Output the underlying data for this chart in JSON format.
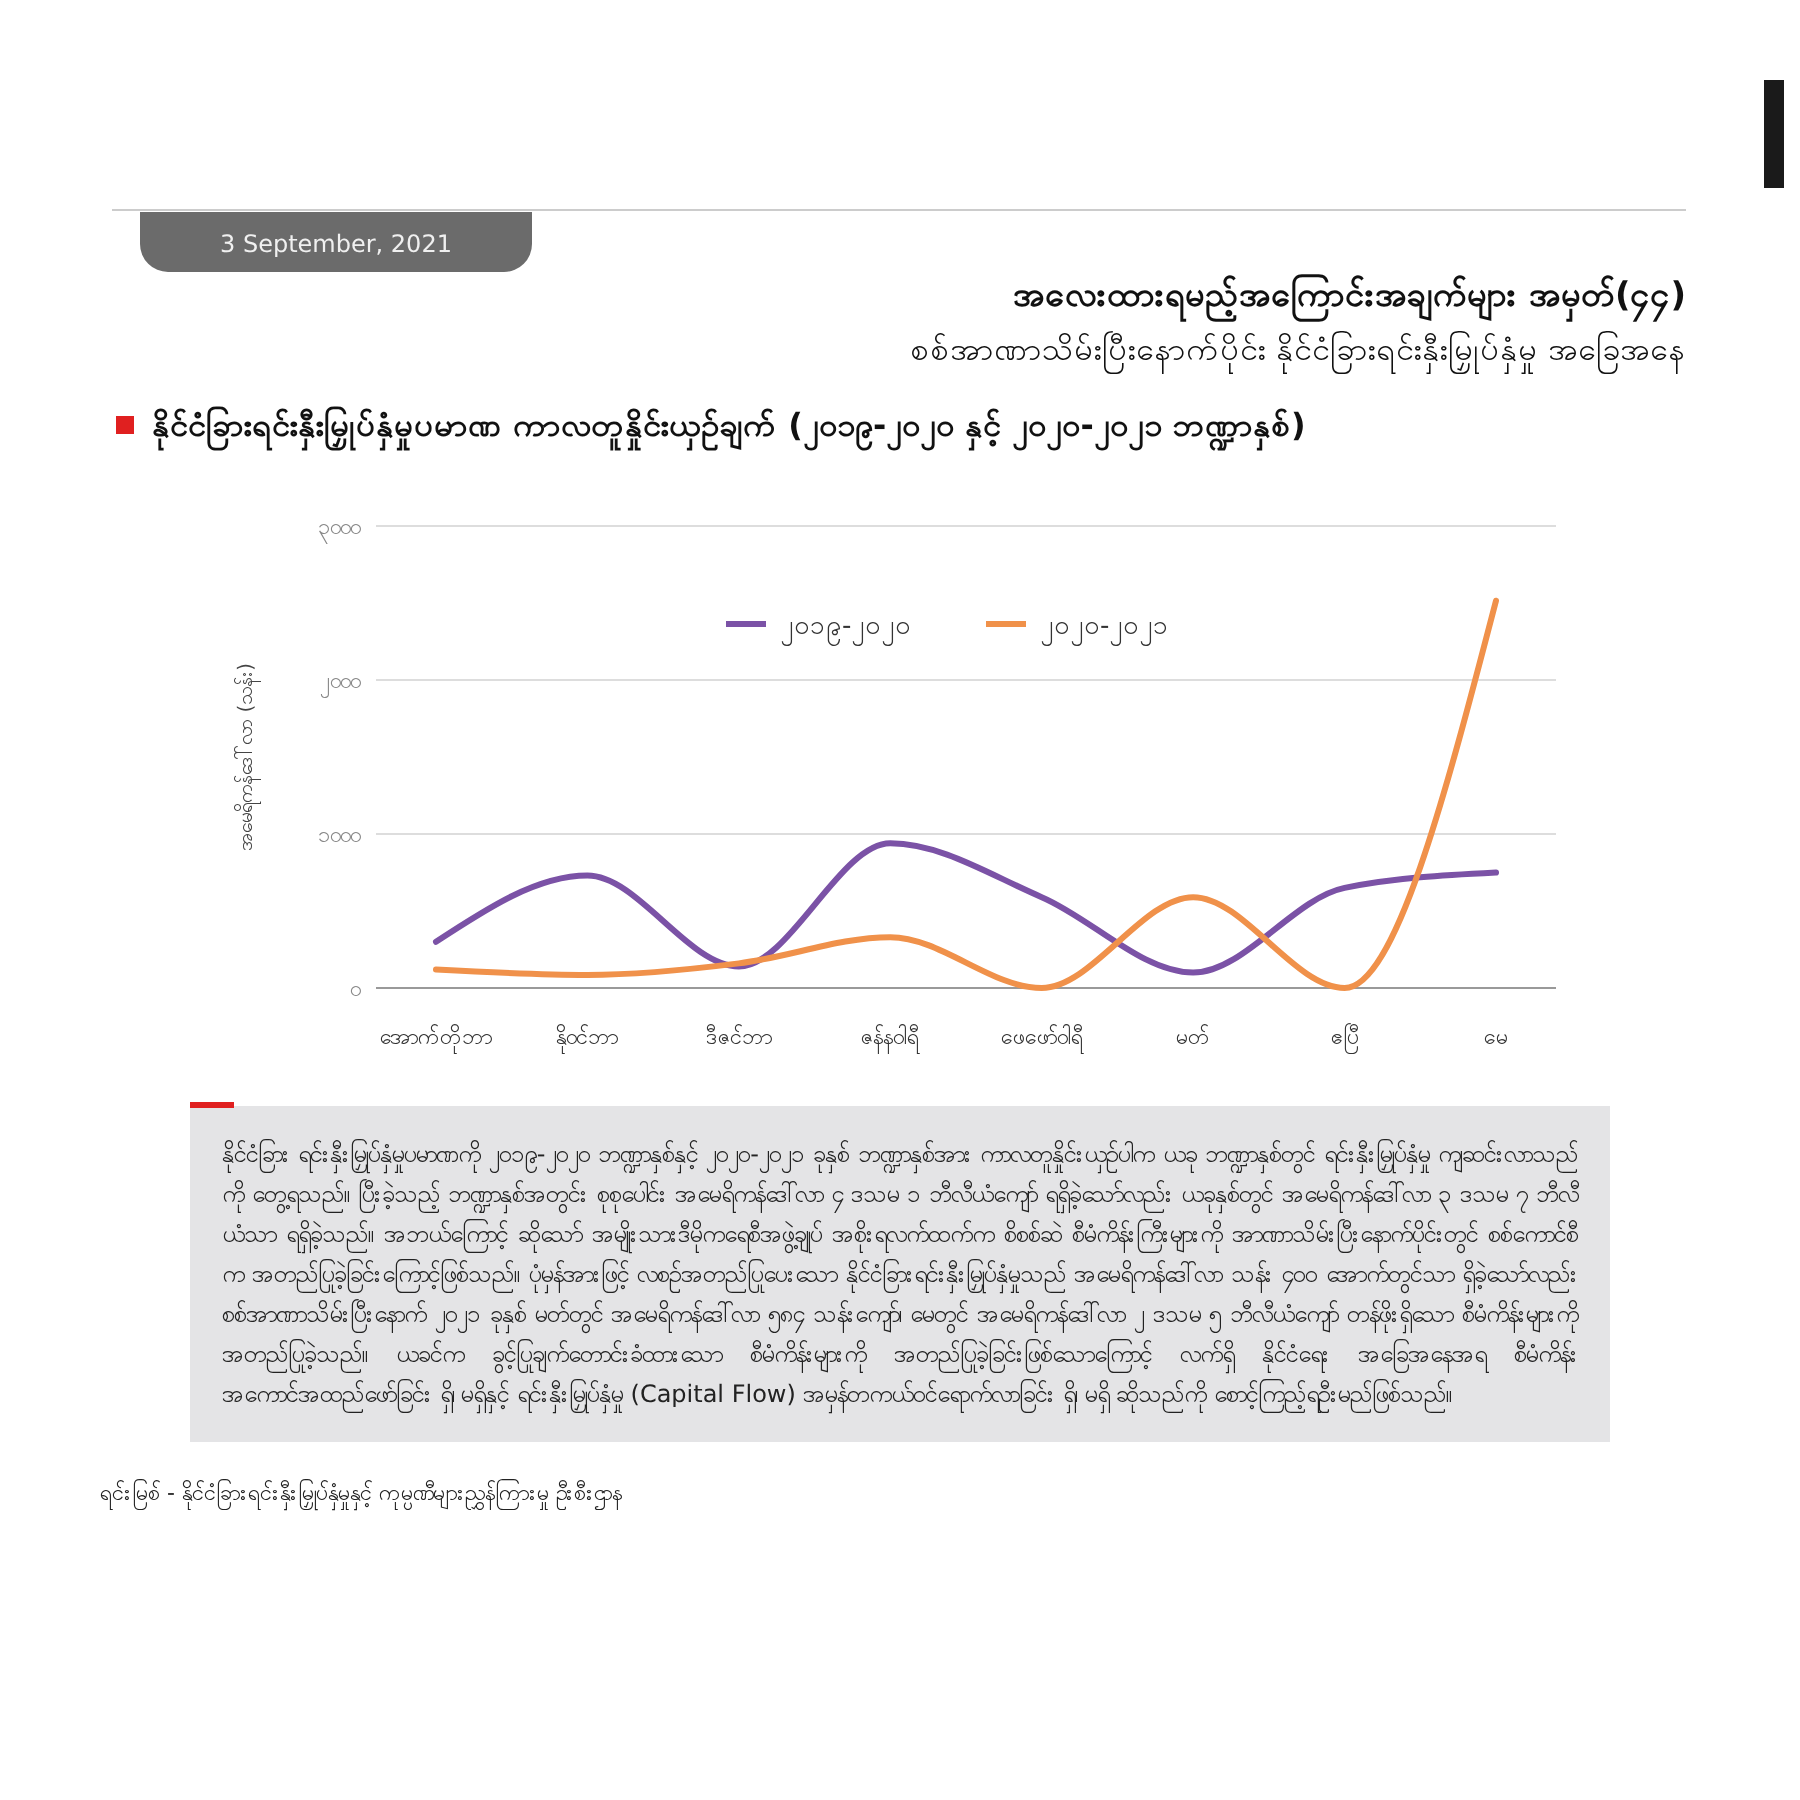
{
  "chart_data": {
    "type": "line",
    "title": "အလေးထားရမည့်အကြောင်းအချက်များ အမှတ်(၄၄)",
    "subtitle": "စစ်အာဏာသိမ်းပြီးနောက်ပိုင်း နိုင်ငံခြားရင်းနှီးမြှုပ်နှံမှု အခြေအနေ",
    "annotations": [
      "3 September, 2021",
      "နိုင်ငံခြားရင်းနှီးမြှုပ်နှံမှုပမာဏ ကာလတူနှိုင်းယှဉ်ချက် (၂၀၁၉-၂၀၂၀ နှင့် ၂၀၂၀-၂၀၂၁ ဘဏ္ဍာနှစ်)",
      "နိုင်ငံခြား ရင်းနှီးမြှုပ်နှံမှုပမာဏကို ၂၀၁၉-၂၀၂၀ ဘဏ္ဍာနှစ်နှင့် ၂၀၂၀-၂၀၂၁ ခုနှစ် ဘဏ္ဍာနှစ်အား ကာလတူနှိုင်းယှဉ်ပါက ယခု ဘဏ္ဍာနှစ်တွင် ရင်းနှီးမြှုပ်နှံမှု ကျဆင်းလာသည်ကို တွေ့ရသည်။ ပြီးခဲ့သည့် ဘဏ္ဍာနှစ်အတွင်း စုစုပေါင်း အမေရိကန်ဒေါ်လာ ၄ ဒသမ ၁ ဘီလီယံကျော် ရရှိခဲ့သော်လည်း ယခုနှစ်တွင် အမေရိကန်ဒေါ်လာ ၃ ဒသမ ၇ ဘီလီယံသာ ရရှိခဲ့သည်။ အဘယ်ကြောင့် ဆိုသော် အမျိုးသားဒီမိုကရေစီအဖွဲ့ချုပ် အစိုးရလက်ထက်က စိစစ်ဆဲ စီမံကိန်းကြီးများကို အာဏာသိမ်းပြီးနောက်ပိုင်းတွင် စစ်ကောင်စီက အတည်ပြုခဲ့ခြင်းကြောင့်ဖြစ်သည်။ ပုံမှန်အားဖြင့် လစဉ်အတည်ပြုပေးသော နိုင်ငံခြားရင်းနှီးမြှုပ်နှံမှုသည် အမေရိကန်ဒေါ်လာ သန်း ၄၀၀ အောက်တွင်သာ ရှိခဲ့သော်လည်း စစ်အာဏာသိမ်းပြီးနောက် ၂၀၂၁ ခုနှစ် မတ်တွင် အမေရိကန်ဒေါ်လာ ၅၈၄ သန်းကျော်၊ မေတွင် အမေရိကန်ဒေါ်လာ ၂ ဒသမ ၅ ဘီလီယံကျော် တန်ဖိုးရှိသော စီမံကိန်းများကို အတည်ပြုခဲ့သည်။ ယခင်က ခွင့်ပြုချက်တောင်းခံထားသော စီမံကိန်းများကို အတည်ပြုခဲ့ခြင်းဖြစ်သောကြောင့် လက်ရှိ နိုင်ငံရေး အခြေအနေအရ စီမံကိန်း အကောင်အထည်ဖော်ခြင်း ရှိ၊ မရှိနှင့် ရင်းနှီးမြှုပ်နှံမှု (Capital Flow) အမှန်တကယ်ဝင်ရောက်လာခြင်း ရှိ၊ မရှိ ဆိုသည်ကို စောင့်ကြည့်ရဦးမည်ဖြစ်သည်။",
      "ရင်းမြစ် -   နိုင်ငံခြားရင်းနှီးမြှုပ်နှံမှုနှင့် ကုမ္ပဏီများညွှန်ကြားမှု ဦးစီးဌာန"
    ],
    "ylabel": "အမေရိကန်ဒေါ်လာ (သန်း)",
    "categories": [
      "အောက်တိုဘာ",
      "နိုဝင်ဘာ",
      "ဒီဇင်ဘာ",
      "ဇန်နဝါရီ",
      "ဖေဖော်ဝါရီ",
      "မတ်",
      "ဧပြီ",
      "မေ"
    ],
    "series": [
      {
        "name": "၂၀၁၉-၂၀၂၀",
        "color": "#7b52a6",
        "values": [
          300,
          730,
          140,
          940,
          590,
          100,
          650,
          750
        ]
      },
      {
        "name": "၂၀၂၀-၂၀၂၁",
        "color": "#f0914a",
        "values": [
          120,
          85,
          160,
          330,
          0,
          590,
          0,
          2515
        ]
      }
    ],
    "ylim": [
      0,
      3000
    ],
    "yticks": [
      {
        "value": 0,
        "label": "၀"
      },
      {
        "value": 1000,
        "label": "၁၀၀၀"
      },
      {
        "value": 2000,
        "label": "၂၀၀၀"
      },
      {
        "value": 3000,
        "label": "၃၀၀၀"
      }
    ],
    "grid": "y",
    "legend": "top",
    "marker": "none",
    "line_style": "solid"
  }
}
